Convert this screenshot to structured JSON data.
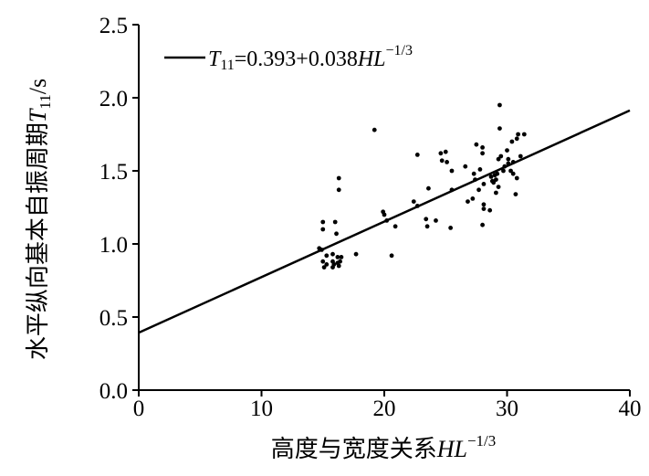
{
  "chart_data": {
    "type": "scatter",
    "xlabel_main": "高度与宽度关系",
    "xlabel_var": "HL",
    "xlabel_exp": "−1/3",
    "ylabel_main": "水平纵向基本自振周期",
    "ylabel_var": "T",
    "ylabel_sub": "11",
    "ylabel_unit": "/s",
    "xlim": [
      0,
      40
    ],
    "ylim": [
      0,
      2.5
    ],
    "x_ticks": [
      0,
      10,
      20,
      30,
      40
    ],
    "y_ticks": [
      0.0,
      0.5,
      1.0,
      1.5,
      2.0,
      2.5
    ],
    "x_tick_labels": [
      "0",
      "10",
      "20",
      "30",
      "40"
    ],
    "y_tick_labels": [
      "0.0",
      "0.5",
      "1.0",
      "1.5",
      "2.0",
      "2.5"
    ],
    "grid": false,
    "legend_position": "top-left",
    "legend": {
      "var": "T",
      "sub": "11",
      "eq_a": "=0.393+0.038",
      "eq_var": "HL",
      "eq_exp": "−1/3"
    },
    "fit_line": {
      "intercept": 0.393,
      "slope": 0.038,
      "x_range": [
        0,
        40
      ]
    },
    "points": [
      [
        14.7,
        0.97
      ],
      [
        14.9,
        0.96
      ],
      [
        15.0,
        1.1
      ],
      [
        15.0,
        1.15
      ],
      [
        15.0,
        0.88
      ],
      [
        15.1,
        0.84
      ],
      [
        15.3,
        0.92
      ],
      [
        15.3,
        0.86
      ],
      [
        15.8,
        0.84
      ],
      [
        15.8,
        0.88
      ],
      [
        15.8,
        0.93
      ],
      [
        15.9,
        0.86
      ],
      [
        16.0,
        1.15
      ],
      [
        16.1,
        1.07
      ],
      [
        16.2,
        0.91
      ],
      [
        16.2,
        0.87
      ],
      [
        16.3,
        0.85
      ],
      [
        16.3,
        1.37
      ],
      [
        16.3,
        1.45
      ],
      [
        16.4,
        0.88
      ],
      [
        16.5,
        0.91
      ],
      [
        17.7,
        0.93
      ],
      [
        19.2,
        1.78
      ],
      [
        19.9,
        1.22
      ],
      [
        20.0,
        1.2
      ],
      [
        20.2,
        1.16
      ],
      [
        20.6,
        0.92
      ],
      [
        20.9,
        1.12
      ],
      [
        22.4,
        1.29
      ],
      [
        22.7,
        1.26
      ],
      [
        22.7,
        1.61
      ],
      [
        23.4,
        1.17
      ],
      [
        23.5,
        1.12
      ],
      [
        23.6,
        1.38
      ],
      [
        24.2,
        1.16
      ],
      [
        24.6,
        1.62
      ],
      [
        24.7,
        1.57
      ],
      [
        25.0,
        1.63
      ],
      [
        25.1,
        1.56
      ],
      [
        25.4,
        1.11
      ],
      [
        25.5,
        1.5
      ],
      [
        25.5,
        1.37
      ],
      [
        26.6,
        1.53
      ],
      [
        26.8,
        1.29
      ],
      [
        27.2,
        1.31
      ],
      [
        27.3,
        1.48
      ],
      [
        27.4,
        1.44
      ],
      [
        27.5,
        1.68
      ],
      [
        27.7,
        1.37
      ],
      [
        27.8,
        1.51
      ],
      [
        28.0,
        1.66
      ],
      [
        28.0,
        1.62
      ],
      [
        28.1,
        1.41
      ],
      [
        28.1,
        1.27
      ],
      [
        28.1,
        1.24
      ],
      [
        28.0,
        1.13
      ],
      [
        28.6,
        1.23
      ],
      [
        28.7,
        1.46
      ],
      [
        28.8,
        1.43
      ],
      [
        28.9,
        1.42
      ],
      [
        29.0,
        1.47
      ],
      [
        29.1,
        1.35
      ],
      [
        29.1,
        1.44
      ],
      [
        29.2,
        1.48
      ],
      [
        29.3,
        1.58
      ],
      [
        29.3,
        1.39
      ],
      [
        29.4,
        1.79
      ],
      [
        29.4,
        1.95
      ],
      [
        29.5,
        1.6
      ],
      [
        29.7,
        1.5
      ],
      [
        29.8,
        1.53
      ],
      [
        30.0,
        1.64
      ],
      [
        30.1,
        1.58
      ],
      [
        30.1,
        1.55
      ],
      [
        30.3,
        1.5
      ],
      [
        30.4,
        1.7
      ],
      [
        30.5,
        1.56
      ],
      [
        30.5,
        1.48
      ],
      [
        30.7,
        1.34
      ],
      [
        30.8,
        1.45
      ],
      [
        30.8,
        1.72
      ],
      [
        30.9,
        1.75
      ],
      [
        31.1,
        1.6
      ],
      [
        31.4,
        1.75
      ]
    ]
  }
}
